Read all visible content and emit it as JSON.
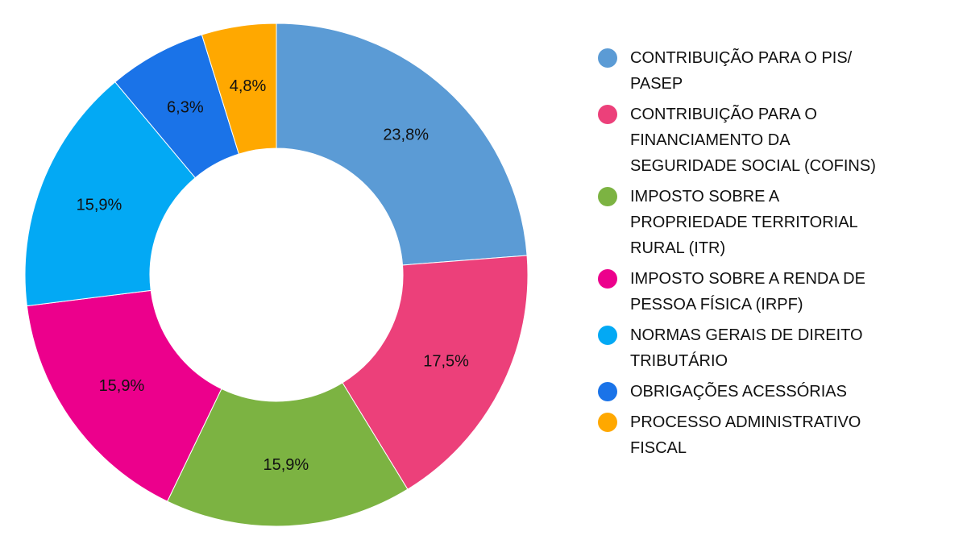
{
  "chart_data": {
    "type": "pie",
    "style": "donut",
    "legend_position": "right",
    "categories": [
      "CONTRIBUIÇÃO PARA O PIS/ PASEP",
      "CONTRIBUIÇÃO PARA O FINANCIAMENTO DA SEGURIDADE SOCIAL (COFINS)",
      "IMPOSTO SOBRE A PROPRIEDADE TERRITORIAL RURAL (ITR)",
      "IMPOSTO SOBRE A RENDA DE PESSOA FÍSICA (IRPF)",
      "NORMAS GERAIS DE DIREITO TRIBUTÁRIO",
      "OBRIGAÇÕES ACESSÓRIAS",
      "PROCESSO ADMINISTRATIVO FISCAL"
    ],
    "values": [
      23.8,
      17.5,
      15.9,
      15.9,
      15.9,
      6.3,
      4.8
    ],
    "value_labels": [
      "23,8%",
      "17,5%",
      "15,9%",
      "15,9%",
      "15,9%",
      "6,3%",
      "4,8%"
    ],
    "colors": [
      "#5b9bd5",
      "#ec407a",
      "#7cb342",
      "#ec008c",
      "#03a9f4",
      "#1a73e8",
      "#ffa800"
    ],
    "legend_labels": [
      [
        "CONTRIBUIÇÃO PARA O PIS/",
        "PASEP"
      ],
      [
        "CONTRIBUIÇÃO PARA O",
        "FINANCIAMENTO DA",
        "SEGURIDADE SOCIAL (COFINS)"
      ],
      [
        "IMPOSTO SOBRE A",
        "PROPRIEDADE TERRITORIAL",
        "RURAL (ITR)"
      ],
      [
        "IMPOSTO SOBRE A RENDA DE",
        "PESSOA FÍSICA (IRPF)"
      ],
      [
        "NORMAS GERAIS DE DIREITO",
        "TRIBUTÁRIO"
      ],
      [
        "OBRIGAÇÕES ACESSÓRIAS"
      ],
      [
        "PROCESSO ADMINISTRATIVO",
        "FISCAL"
      ]
    ]
  }
}
